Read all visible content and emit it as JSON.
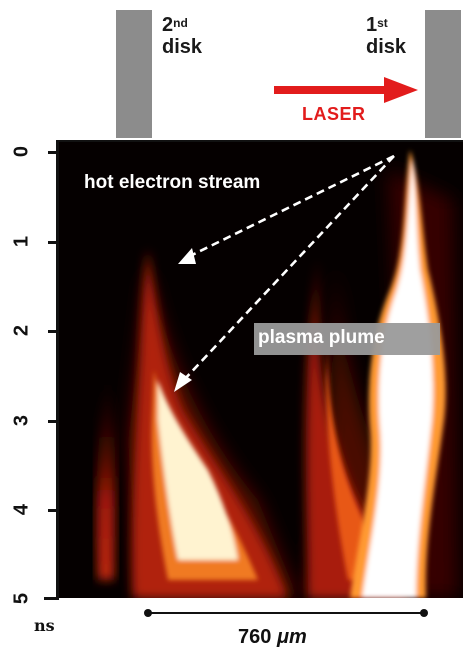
{
  "disks": {
    "second": {
      "num": "2",
      "sup": "nd",
      "word": "disk"
    },
    "first": {
      "num": "1",
      "sup": "st",
      "word": "disk"
    }
  },
  "laser": {
    "label": "LASER",
    "color": "#e21c1c"
  },
  "annotations": {
    "hot_electron": "hot electron stream",
    "plasma": "plasma plume"
  },
  "axis": {
    "ticks": [
      "0",
      "1",
      "2",
      "3",
      "4",
      "5"
    ],
    "unit": "ns"
  },
  "scalebar": {
    "label_value": "760",
    "label_unit": "μm"
  },
  "colors": {
    "disk_gray": "#8c8c8c",
    "hot": "#ffffff",
    "warm": "#e0401a",
    "background": "#050000"
  }
}
